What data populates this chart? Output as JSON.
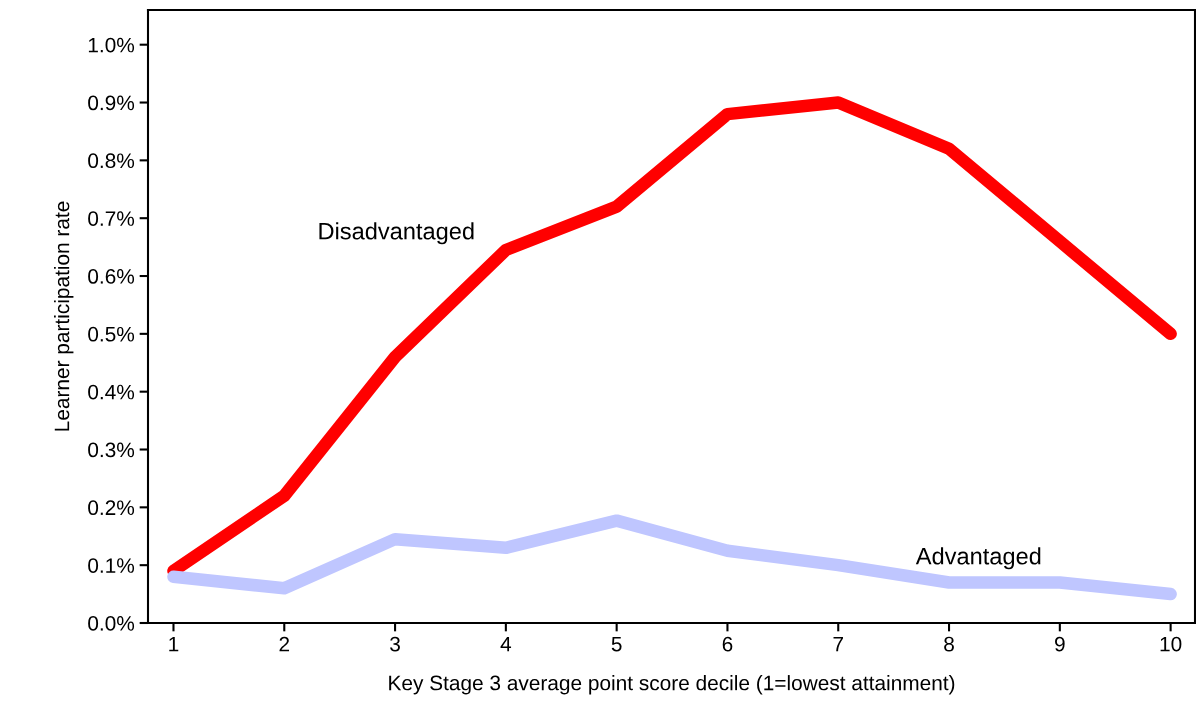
{
  "chart_data": {
    "type": "line",
    "xlabel": "Key Stage 3 average point score decile (1=lowest attainment)",
    "ylabel": "Learner participation rate",
    "x": [
      1,
      2,
      3,
      4,
      5,
      6,
      7,
      8,
      9,
      10
    ],
    "series": [
      {
        "name": "Disadvantaged",
        "color": "#ff0000",
        "values": [
          0.09,
          0.22,
          0.46,
          0.645,
          0.72,
          0.88,
          0.9,
          0.82,
          0.66,
          0.5
        ]
      },
      {
        "name": "Advantaged",
        "color": "#bfc6ff",
        "values": [
          0.08,
          0.06,
          0.145,
          0.13,
          0.177,
          0.125,
          0.1,
          0.07,
          0.07,
          0.05
        ]
      }
    ],
    "xlim": [
      0.77,
      10.22
    ],
    "xticks": [
      1,
      2,
      3,
      4,
      5,
      6,
      7,
      8,
      9,
      10
    ],
    "ylim": [
      0,
      1.06
    ],
    "yticks": [
      {
        "value": 0,
        "label": "0.0%"
      },
      {
        "value": 0.1,
        "label": "0.1%"
      },
      {
        "value": 0.2,
        "label": "0.2%"
      },
      {
        "value": 0.3,
        "label": "0.3%"
      },
      {
        "value": 0.4,
        "label": "0.4%"
      },
      {
        "value": 0.5,
        "label": "0.5%"
      },
      {
        "value": 0.6,
        "label": "0.6%"
      },
      {
        "value": 0.7,
        "label": "0.7%"
      },
      {
        "value": 0.8,
        "label": "0.8%"
      },
      {
        "value": 0.9,
        "label": "0.9%"
      },
      {
        "value": 1.0,
        "label": "1.0%"
      }
    ],
    "grid": false,
    "legend": false,
    "line_style": "solid"
  }
}
